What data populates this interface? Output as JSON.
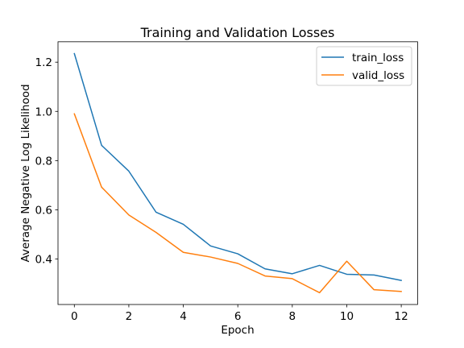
{
  "chart_data": {
    "type": "line",
    "title": "Training and Validation Losses",
    "xlabel": "Epoch",
    "ylabel": "Average Negative Log Likelihood",
    "xlim": [
      -0.6,
      12.6
    ],
    "ylim": [
      0.215,
      1.283
    ],
    "xticks": [
      0,
      2,
      4,
      6,
      8,
      10,
      12
    ],
    "yticks": [
      0.4,
      0.6,
      0.8,
      1.0,
      1.2
    ],
    "xtick_labels": [
      "0",
      "2",
      "4",
      "6",
      "8",
      "10",
      "12"
    ],
    "ytick_labels": [
      "0.4",
      "0.6",
      "0.8",
      "1.0",
      "1.2"
    ],
    "grid": false,
    "legend_position": "top-right",
    "x": [
      0,
      1,
      2,
      3,
      4,
      5,
      6,
      7,
      8,
      9,
      10,
      11,
      12
    ],
    "series": [
      {
        "name": "train_loss",
        "color": "#1f77b4",
        "values": [
          1.235,
          0.862,
          0.757,
          0.59,
          0.541,
          0.453,
          0.421,
          0.36,
          0.34,
          0.374,
          0.338,
          0.335,
          0.313
        ]
      },
      {
        "name": "valid_loss",
        "color": "#ff7f0e",
        "values": [
          0.99,
          0.692,
          0.579,
          0.508,
          0.427,
          0.408,
          0.382,
          0.331,
          0.32,
          0.263,
          0.391,
          0.275,
          0.268
        ]
      }
    ]
  }
}
